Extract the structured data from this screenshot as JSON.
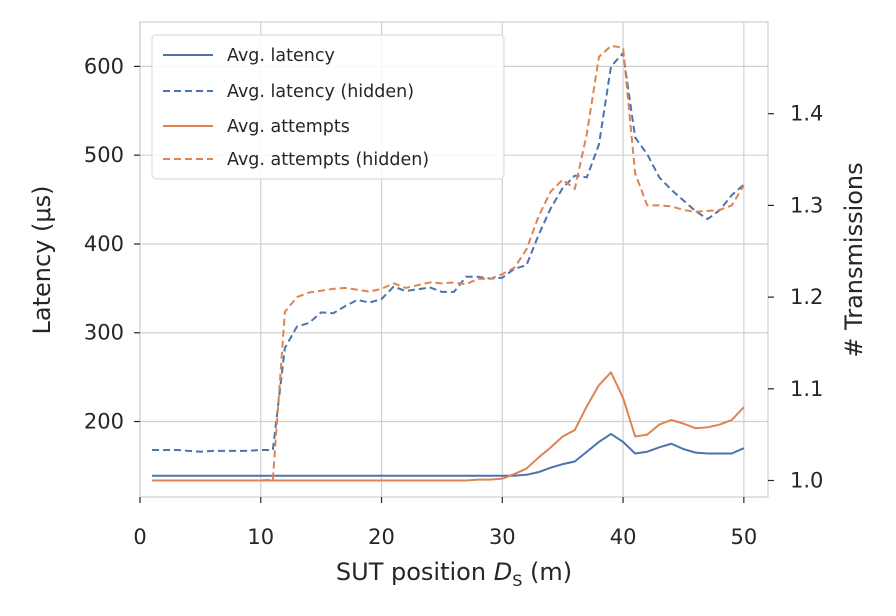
{
  "chart_data": {
    "type": "line",
    "title": "",
    "xlabel": "SUT position D_S (m)",
    "xlabel_parts": {
      "prefix": "SUT position ",
      "var": "D",
      "sub": "S",
      "suffix": " (m)"
    },
    "ylabel_left": "Latency (μs)",
    "ylabel_right": "# Transmissions",
    "xlim": [
      0,
      52
    ],
    "ylim_left": [
      115,
      650
    ],
    "ylim_right": [
      0.982,
      1.5
    ],
    "x_ticks": [
      0,
      10,
      20,
      30,
      40,
      50
    ],
    "y_left_ticks": [
      200,
      300,
      400,
      500,
      600
    ],
    "y_right_ticks": [
      1.0,
      1.1,
      1.2,
      1.3,
      1.4
    ],
    "y_right_tick_labels": [
      "1.0",
      "1.1",
      "1.2",
      "1.3",
      "1.4"
    ],
    "grid": true,
    "legend_position": "top-left",
    "colors": {
      "blue": "#4c72b0",
      "orange": "#dd8452",
      "grid": "#d0d0d0",
      "axis": "#262626"
    },
    "x": [
      1,
      2,
      3,
      4,
      5,
      6,
      7,
      8,
      9,
      10,
      11,
      12,
      13,
      14,
      15,
      16,
      17,
      18,
      19,
      20,
      21,
      22,
      23,
      24,
      25,
      26,
      27,
      28,
      29,
      30,
      31,
      32,
      33,
      34,
      35,
      36,
      37,
      38,
      39,
      40,
      41,
      42,
      43,
      44,
      45,
      46,
      47,
      48,
      49,
      50
    ],
    "series": [
      {
        "name": "Avg. latency",
        "axis": "left",
        "style": "solid",
        "color": "#4c72b0",
        "values": [
          139,
          139,
          139,
          139,
          139,
          139,
          139,
          139,
          139,
          139,
          139,
          139,
          139,
          139,
          139,
          139,
          139,
          139,
          139,
          139,
          139,
          139,
          139,
          139,
          139,
          139,
          139,
          139,
          139,
          139,
          139,
          140,
          143,
          148,
          152,
          155,
          166,
          177,
          186,
          177,
          164,
          166,
          171,
          175,
          169,
          165,
          164,
          164,
          164,
          170
        ]
      },
      {
        "name": "Avg. latency (hidden)",
        "axis": "left",
        "style": "dashed",
        "color": "#4c72b0",
        "values": [
          168,
          168,
          168,
          167,
          166,
          167,
          167,
          167,
          167,
          168,
          168,
          283,
          307,
          311,
          323,
          322,
          330,
          337,
          334,
          338,
          352,
          347,
          349,
          351,
          346,
          346,
          363,
          363,
          361,
          362,
          372,
          376,
          410,
          440,
          463,
          477,
          475,
          512,
          600,
          615,
          520,
          501,
          475,
          461,
          449,
          437,
          428,
          438,
          455,
          467
        ]
      },
      {
        "name": "Avg. attempts",
        "axis": "right",
        "style": "solid",
        "color": "#dd8452",
        "values": [
          1.0,
          1.0,
          1.0,
          1.0,
          1.0,
          1.0,
          1.0,
          1.0,
          1.0,
          1.0,
          1.0,
          1.0,
          1.0,
          1.0,
          1.0,
          1.0,
          1.0,
          1.0,
          1.0,
          1.0,
          1.0,
          1.0,
          1.0,
          1.0,
          1.0,
          1.0,
          1.0,
          1.001,
          1.001,
          1.002,
          1.007,
          1.013,
          1.025,
          1.036,
          1.048,
          1.055,
          1.081,
          1.104,
          1.118,
          1.09,
          1.048,
          1.05,
          1.061,
          1.066,
          1.062,
          1.057,
          1.058,
          1.061,
          1.066,
          1.08
        ]
      },
      {
        "name": "Avg. attempts (hidden)",
        "axis": "right",
        "style": "dashed",
        "color": "#dd8452",
        "values": [
          1.0,
          1.0,
          1.0,
          1.0,
          1.0,
          1.0,
          1.0,
          1.0,
          1.0,
          1.0,
          1.001,
          1.184,
          1.2,
          1.205,
          1.207,
          1.209,
          1.21,
          1.208,
          1.206,
          1.209,
          1.215,
          1.21,
          1.213,
          1.216,
          1.215,
          1.216,
          1.214,
          1.22,
          1.22,
          1.225,
          1.232,
          1.252,
          1.288,
          1.315,
          1.328,
          1.318,
          1.378,
          1.462,
          1.474,
          1.472,
          1.335,
          1.3,
          1.3,
          1.299,
          1.295,
          1.293,
          1.294,
          1.295,
          1.3,
          1.322
        ]
      }
    ]
  }
}
